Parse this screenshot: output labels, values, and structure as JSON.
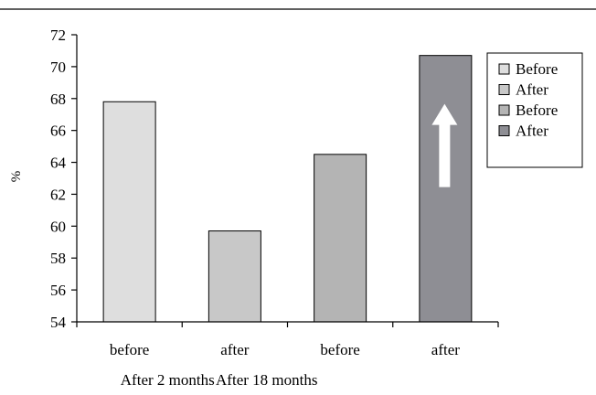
{
  "chart_data": {
    "type": "bar",
    "ylabel": "%",
    "ylim": [
      54,
      72
    ],
    "y_ticks": [
      54,
      56,
      58,
      60,
      62,
      64,
      66,
      68,
      70,
      72
    ],
    "grid": false,
    "categories": [
      "before",
      "after",
      "before",
      "after"
    ],
    "groups": [
      "After 2 months",
      "After 18 months"
    ],
    "values": [
      67.8,
      59.7,
      64.5,
      70.7
    ],
    "colors": [
      "#dedede",
      "#c8c8c8",
      "#b4b4b4",
      "#8e8e94"
    ],
    "legend": {
      "placement": "right",
      "entries": [
        "Before",
        "After",
        "Before",
        "After"
      ]
    },
    "annotations": [
      {
        "type": "arrow",
        "direction": "up",
        "color": "#ffffff",
        "on_category_index": 3
      }
    ]
  }
}
